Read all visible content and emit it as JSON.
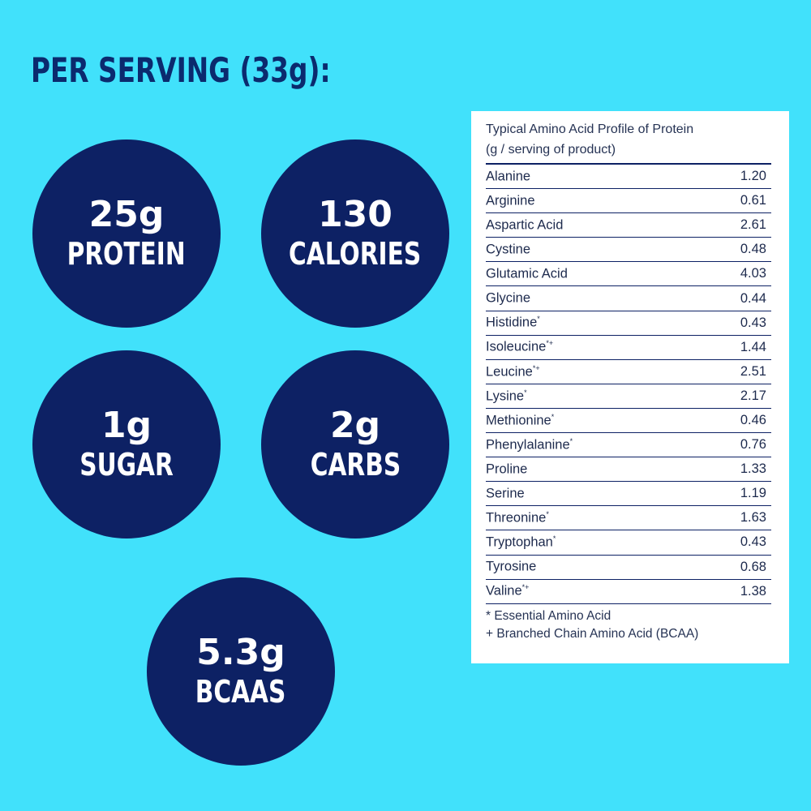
{
  "heading": "PER SERVING (33g):",
  "circles": [
    {
      "value": "25g",
      "label": "PROTEIN"
    },
    {
      "value": "130",
      "label": "CALORIES"
    },
    {
      "value": "1g",
      "label": "SUGAR"
    },
    {
      "value": "2g",
      "label": "CARBS"
    },
    {
      "value": "5.3g",
      "label": "BCAAS"
    }
  ],
  "table": {
    "title_line1": "Typical Amino Acid Profile of Protein",
    "title_line2": "(g / serving of product)",
    "rows": [
      {
        "name": "Alanine",
        "mark": "",
        "value": "1.20"
      },
      {
        "name": "Arginine",
        "mark": "",
        "value": "0.61"
      },
      {
        "name": "Aspartic Acid",
        "mark": "",
        "value": "2.61"
      },
      {
        "name": "Cystine",
        "mark": "",
        "value": "0.48"
      },
      {
        "name": "Glutamic Acid",
        "mark": "",
        "value": "4.03"
      },
      {
        "name": "Glycine",
        "mark": "",
        "value": "0.44"
      },
      {
        "name": "Histidine",
        "mark": "*",
        "value": "0.43"
      },
      {
        "name": "Isoleucine",
        "mark": "*+",
        "value": "1.44"
      },
      {
        "name": "Leucine",
        "mark": "*+",
        "value": "2.51"
      },
      {
        "name": "Lysine",
        "mark": "*",
        "value": "2.17"
      },
      {
        "name": "Methionine",
        "mark": "*",
        "value": "0.46"
      },
      {
        "name": "Phenylalanine",
        "mark": "*",
        "value": "0.76"
      },
      {
        "name": "Proline",
        "mark": "",
        "value": "1.33"
      },
      {
        "name": "Serine",
        "mark": "",
        "value": "1.19"
      },
      {
        "name": "Threonine",
        "mark": "*",
        "value": "1.63"
      },
      {
        "name": "Tryptophan",
        "mark": "*",
        "value": "0.43"
      },
      {
        "name": "Tyrosine",
        "mark": "",
        "value": "0.68"
      },
      {
        "name": "Valine",
        "mark": "*+",
        "value": "1.38"
      }
    ],
    "footnote1": "* Essential Amino Acid",
    "footnote2": "+ Branched Chain Amino Acid (BCAA)"
  },
  "colors": {
    "background": "#41e1fb",
    "circle": "#0d2164",
    "heading": "#0b2a6e"
  }
}
